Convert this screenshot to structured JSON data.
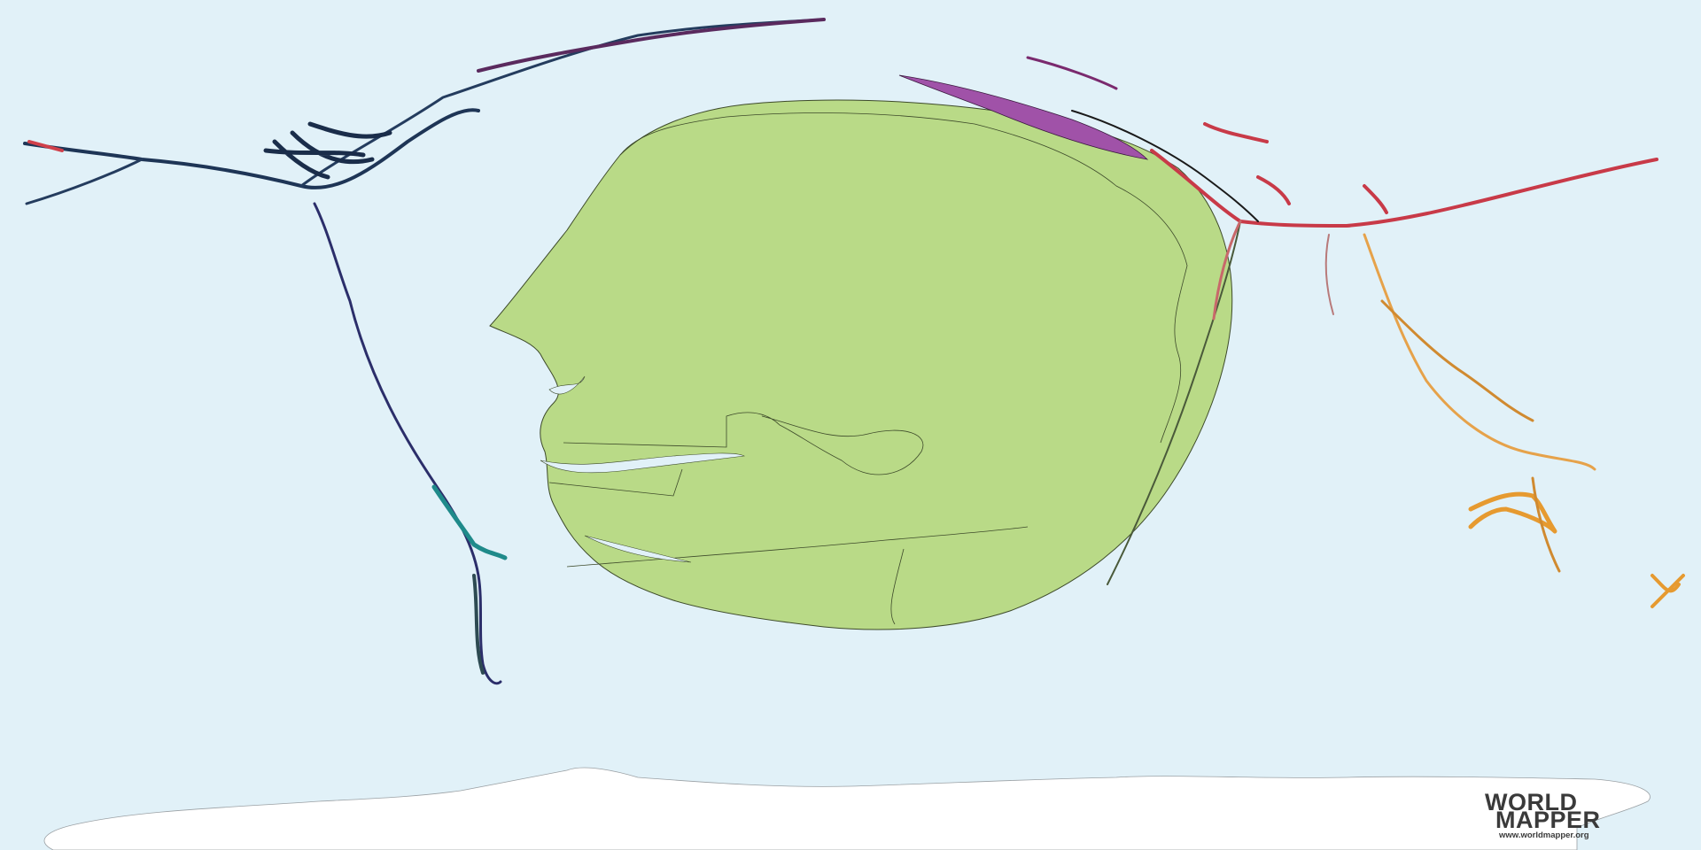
{
  "logo": {
    "line1": "WORLD",
    "line2": "MAPPER",
    "url": "www.worldmapper.org"
  }
}
